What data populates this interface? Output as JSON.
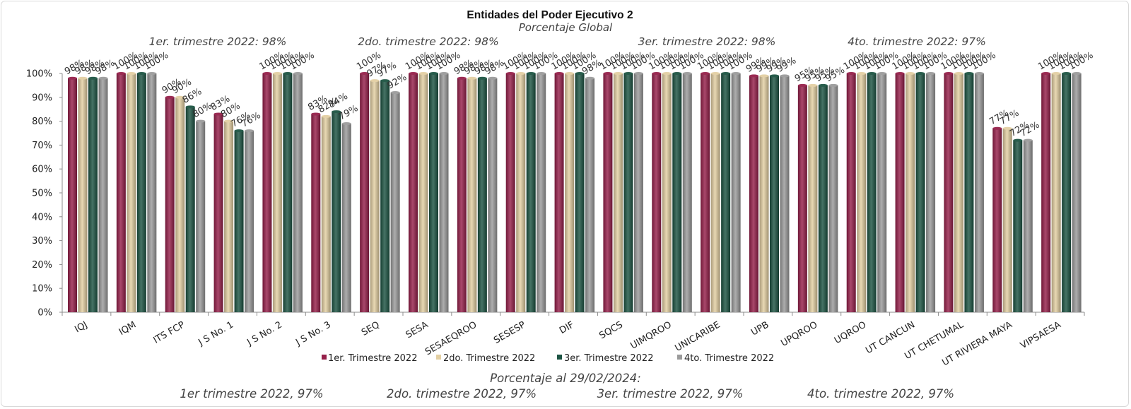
{
  "chart_data": {
    "type": "bar",
    "title": "Entidades del Poder Ejecutivo 2",
    "subtitle": "Porcentaje Global",
    "quarter_summaries": [
      "1er. trimestre 2022: 98%",
      "2do. trimestre 2022: 98%",
      "3er. trimestre 2022: 98%",
      "4to. trimestre 2022: 97%"
    ],
    "categories": [
      "IQJ",
      "IQM",
      "ITS FCP",
      "J S No. 1",
      "J S No. 2",
      "J S No. 3",
      "SEQ",
      "SESA",
      "SESAEQROO",
      "SESESP",
      "DIF",
      "SQCS",
      "UIMQROO",
      "UNICARIBE",
      "UPB",
      "UPQROO",
      "UQROO",
      "UT CANCUN",
      "UT CHETUMAL",
      "UT RIVIERA MAYA",
      "VIPSAESA"
    ],
    "series": [
      {
        "name": "1er. Trimestre 2022",
        "color": "#96204a",
        "values": [
          98,
          100,
          90,
          83,
          100,
          83,
          100,
          100,
          98,
          100,
          100,
          100,
          100,
          100,
          99,
          95,
          100,
          100,
          100,
          77,
          100
        ]
      },
      {
        "name": "2do. Trimestre 2022",
        "color": "#e3cfa2",
        "values": [
          98,
          100,
          90,
          80,
          100,
          82,
          97,
          100,
          98,
          100,
          100,
          100,
          100,
          100,
          99,
          95,
          100,
          100,
          100,
          77,
          100
        ]
      },
      {
        "name": "3er. Trimestre 2022",
        "color": "#1d5443",
        "values": [
          98,
          100,
          86,
          76,
          100,
          84,
          97,
          100,
          98,
          100,
          100,
          100,
          100,
          100,
          99,
          95,
          100,
          100,
          100,
          72,
          100
        ]
      },
      {
        "name": "4to. Trimestre 2022",
        "color": "#9b9b9b",
        "values": [
          98,
          100,
          80,
          76,
          100,
          79,
          92,
          100,
          98,
          100,
          98,
          100,
          100,
          100,
          99,
          95,
          100,
          100,
          100,
          72,
          100
        ]
      }
    ],
    "y_ticks": [
      "0%",
      "10%",
      "20%",
      "30%",
      "40%",
      "50%",
      "60%",
      "70%",
      "80%",
      "90%",
      "100%"
    ],
    "ylim": [
      0,
      100
    ],
    "legend_position": "bottom",
    "grid": false
  },
  "footer": {
    "heading": "Porcentaje al 29/02/2024:",
    "items": [
      "1er trimestre  2022, 97%",
      "2do. trimestre 2022, 97%",
      "3er. trimestre 2022, 97%",
      "4to. trimestre 2022, 97%"
    ]
  }
}
